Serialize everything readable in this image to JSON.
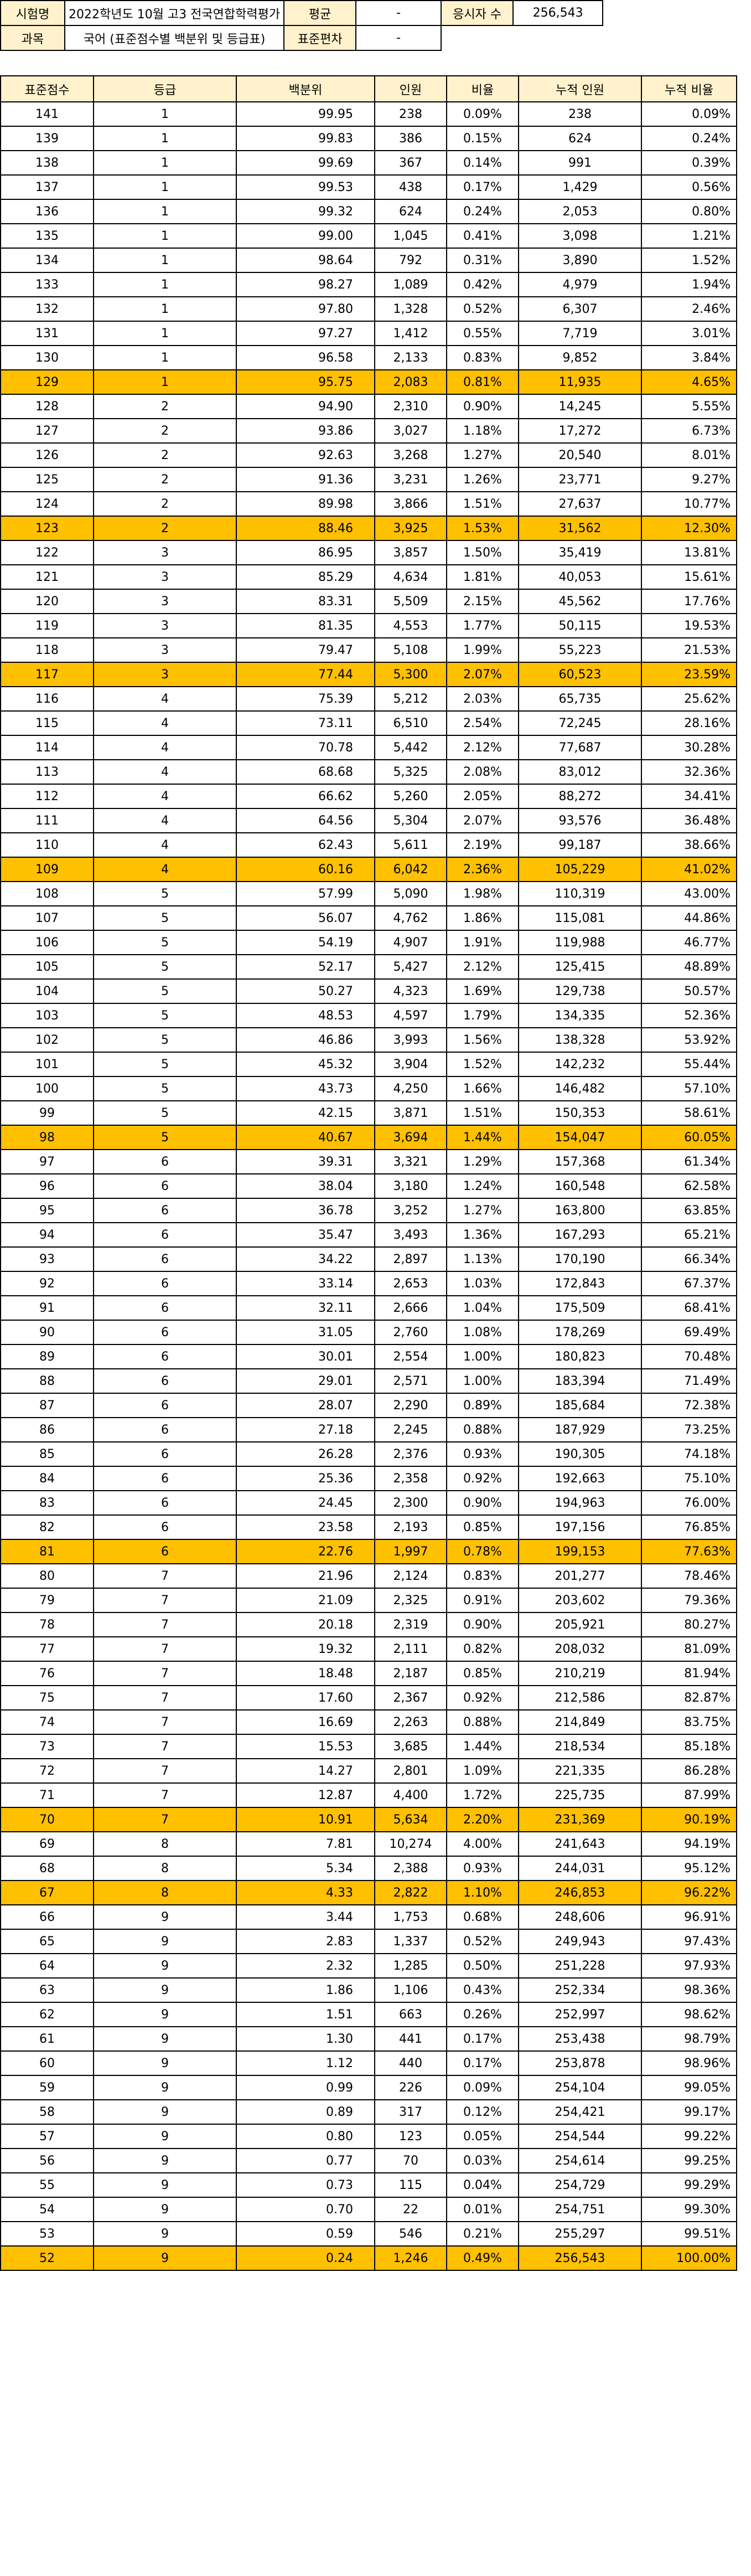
{
  "header": {
    "exam_label": "시험명",
    "exam_value": "2022학년도 10월 고3 전국연합학력평가",
    "mean_label": "평균",
    "mean_value": "-",
    "takers_label": "응시자 수",
    "takers_value": "256,543",
    "subject_label": "과목",
    "subject_value": "국어 (표준점수별 백분위 및 등급표)",
    "sd_label": "표준편차",
    "sd_value": "-"
  },
  "columns": [
    "표준점수",
    "등급",
    "백분위",
    "인원",
    "비율",
    "누적 인원",
    "누적 비율"
  ],
  "highlight_color": "#FFC000",
  "rows": [
    {
      "score": "141",
      "grade": "1",
      "pct": "99.95",
      "count": "238",
      "ratio": "0.09%",
      "cum": "238",
      "cum_ratio": "0.09%",
      "hl": false
    },
    {
      "score": "139",
      "grade": "1",
      "pct": "99.83",
      "count": "386",
      "ratio": "0.15%",
      "cum": "624",
      "cum_ratio": "0.24%",
      "hl": false
    },
    {
      "score": "138",
      "grade": "1",
      "pct": "99.69",
      "count": "367",
      "ratio": "0.14%",
      "cum": "991",
      "cum_ratio": "0.39%",
      "hl": false
    },
    {
      "score": "137",
      "grade": "1",
      "pct": "99.53",
      "count": "438",
      "ratio": "0.17%",
      "cum": "1,429",
      "cum_ratio": "0.56%",
      "hl": false
    },
    {
      "score": "136",
      "grade": "1",
      "pct": "99.32",
      "count": "624",
      "ratio": "0.24%",
      "cum": "2,053",
      "cum_ratio": "0.80%",
      "hl": false
    },
    {
      "score": "135",
      "grade": "1",
      "pct": "99.00",
      "count": "1,045",
      "ratio": "0.41%",
      "cum": "3,098",
      "cum_ratio": "1.21%",
      "hl": false
    },
    {
      "score": "134",
      "grade": "1",
      "pct": "98.64",
      "count": "792",
      "ratio": "0.31%",
      "cum": "3,890",
      "cum_ratio": "1.52%",
      "hl": false
    },
    {
      "score": "133",
      "grade": "1",
      "pct": "98.27",
      "count": "1,089",
      "ratio": "0.42%",
      "cum": "4,979",
      "cum_ratio": "1.94%",
      "hl": false
    },
    {
      "score": "132",
      "grade": "1",
      "pct": "97.80",
      "count": "1,328",
      "ratio": "0.52%",
      "cum": "6,307",
      "cum_ratio": "2.46%",
      "hl": false
    },
    {
      "score": "131",
      "grade": "1",
      "pct": "97.27",
      "count": "1,412",
      "ratio": "0.55%",
      "cum": "7,719",
      "cum_ratio": "3.01%",
      "hl": false
    },
    {
      "score": "130",
      "grade": "1",
      "pct": "96.58",
      "count": "2,133",
      "ratio": "0.83%",
      "cum": "9,852",
      "cum_ratio": "3.84%",
      "hl": false
    },
    {
      "score": "129",
      "grade": "1",
      "pct": "95.75",
      "count": "2,083",
      "ratio": "0.81%",
      "cum": "11,935",
      "cum_ratio": "4.65%",
      "hl": true
    },
    {
      "score": "128",
      "grade": "2",
      "pct": "94.90",
      "count": "2,310",
      "ratio": "0.90%",
      "cum": "14,245",
      "cum_ratio": "5.55%",
      "hl": false
    },
    {
      "score": "127",
      "grade": "2",
      "pct": "93.86",
      "count": "3,027",
      "ratio": "1.18%",
      "cum": "17,272",
      "cum_ratio": "6.73%",
      "hl": false
    },
    {
      "score": "126",
      "grade": "2",
      "pct": "92.63",
      "count": "3,268",
      "ratio": "1.27%",
      "cum": "20,540",
      "cum_ratio": "8.01%",
      "hl": false
    },
    {
      "score": "125",
      "grade": "2",
      "pct": "91.36",
      "count": "3,231",
      "ratio": "1.26%",
      "cum": "23,771",
      "cum_ratio": "9.27%",
      "hl": false
    },
    {
      "score": "124",
      "grade": "2",
      "pct": "89.98",
      "count": "3,866",
      "ratio": "1.51%",
      "cum": "27,637",
      "cum_ratio": "10.77%",
      "hl": false
    },
    {
      "score": "123",
      "grade": "2",
      "pct": "88.46",
      "count": "3,925",
      "ratio": "1.53%",
      "cum": "31,562",
      "cum_ratio": "12.30%",
      "hl": true
    },
    {
      "score": "122",
      "grade": "3",
      "pct": "86.95",
      "count": "3,857",
      "ratio": "1.50%",
      "cum": "35,419",
      "cum_ratio": "13.81%",
      "hl": false
    },
    {
      "score": "121",
      "grade": "3",
      "pct": "85.29",
      "count": "4,634",
      "ratio": "1.81%",
      "cum": "40,053",
      "cum_ratio": "15.61%",
      "hl": false
    },
    {
      "score": "120",
      "grade": "3",
      "pct": "83.31",
      "count": "5,509",
      "ratio": "2.15%",
      "cum": "45,562",
      "cum_ratio": "17.76%",
      "hl": false
    },
    {
      "score": "119",
      "grade": "3",
      "pct": "81.35",
      "count": "4,553",
      "ratio": "1.77%",
      "cum": "50,115",
      "cum_ratio": "19.53%",
      "hl": false
    },
    {
      "score": "118",
      "grade": "3",
      "pct": "79.47",
      "count": "5,108",
      "ratio": "1.99%",
      "cum": "55,223",
      "cum_ratio": "21.53%",
      "hl": false
    },
    {
      "score": "117",
      "grade": "3",
      "pct": "77.44",
      "count": "5,300",
      "ratio": "2.07%",
      "cum": "60,523",
      "cum_ratio": "23.59%",
      "hl": true
    },
    {
      "score": "116",
      "grade": "4",
      "pct": "75.39",
      "count": "5,212",
      "ratio": "2.03%",
      "cum": "65,735",
      "cum_ratio": "25.62%",
      "hl": false
    },
    {
      "score": "115",
      "grade": "4",
      "pct": "73.11",
      "count": "6,510",
      "ratio": "2.54%",
      "cum": "72,245",
      "cum_ratio": "28.16%",
      "hl": false
    },
    {
      "score": "114",
      "grade": "4",
      "pct": "70.78",
      "count": "5,442",
      "ratio": "2.12%",
      "cum": "77,687",
      "cum_ratio": "30.28%",
      "hl": false
    },
    {
      "score": "113",
      "grade": "4",
      "pct": "68.68",
      "count": "5,325",
      "ratio": "2.08%",
      "cum": "83,012",
      "cum_ratio": "32.36%",
      "hl": false
    },
    {
      "score": "112",
      "grade": "4",
      "pct": "66.62",
      "count": "5,260",
      "ratio": "2.05%",
      "cum": "88,272",
      "cum_ratio": "34.41%",
      "hl": false
    },
    {
      "score": "111",
      "grade": "4",
      "pct": "64.56",
      "count": "5,304",
      "ratio": "2.07%",
      "cum": "93,576",
      "cum_ratio": "36.48%",
      "hl": false
    },
    {
      "score": "110",
      "grade": "4",
      "pct": "62.43",
      "count": "5,611",
      "ratio": "2.19%",
      "cum": "99,187",
      "cum_ratio": "38.66%",
      "hl": false
    },
    {
      "score": "109",
      "grade": "4",
      "pct": "60.16",
      "count": "6,042",
      "ratio": "2.36%",
      "cum": "105,229",
      "cum_ratio": "41.02%",
      "hl": true
    },
    {
      "score": "108",
      "grade": "5",
      "pct": "57.99",
      "count": "5,090",
      "ratio": "1.98%",
      "cum": "110,319",
      "cum_ratio": "43.00%",
      "hl": false
    },
    {
      "score": "107",
      "grade": "5",
      "pct": "56.07",
      "count": "4,762",
      "ratio": "1.86%",
      "cum": "115,081",
      "cum_ratio": "44.86%",
      "hl": false
    },
    {
      "score": "106",
      "grade": "5",
      "pct": "54.19",
      "count": "4,907",
      "ratio": "1.91%",
      "cum": "119,988",
      "cum_ratio": "46.77%",
      "hl": false
    },
    {
      "score": "105",
      "grade": "5",
      "pct": "52.17",
      "count": "5,427",
      "ratio": "2.12%",
      "cum": "125,415",
      "cum_ratio": "48.89%",
      "hl": false
    },
    {
      "score": "104",
      "grade": "5",
      "pct": "50.27",
      "count": "4,323",
      "ratio": "1.69%",
      "cum": "129,738",
      "cum_ratio": "50.57%",
      "hl": false
    },
    {
      "score": "103",
      "grade": "5",
      "pct": "48.53",
      "count": "4,597",
      "ratio": "1.79%",
      "cum": "134,335",
      "cum_ratio": "52.36%",
      "hl": false
    },
    {
      "score": "102",
      "grade": "5",
      "pct": "46.86",
      "count": "3,993",
      "ratio": "1.56%",
      "cum": "138,328",
      "cum_ratio": "53.92%",
      "hl": false
    },
    {
      "score": "101",
      "grade": "5",
      "pct": "45.32",
      "count": "3,904",
      "ratio": "1.52%",
      "cum": "142,232",
      "cum_ratio": "55.44%",
      "hl": false
    },
    {
      "score": "100",
      "grade": "5",
      "pct": "43.73",
      "count": "4,250",
      "ratio": "1.66%",
      "cum": "146,482",
      "cum_ratio": "57.10%",
      "hl": false
    },
    {
      "score": "99",
      "grade": "5",
      "pct": "42.15",
      "count": "3,871",
      "ratio": "1.51%",
      "cum": "150,353",
      "cum_ratio": "58.61%",
      "hl": false
    },
    {
      "score": "98",
      "grade": "5",
      "pct": "40.67",
      "count": "3,694",
      "ratio": "1.44%",
      "cum": "154,047",
      "cum_ratio": "60.05%",
      "hl": true
    },
    {
      "score": "97",
      "grade": "6",
      "pct": "39.31",
      "count": "3,321",
      "ratio": "1.29%",
      "cum": "157,368",
      "cum_ratio": "61.34%",
      "hl": false
    },
    {
      "score": "96",
      "grade": "6",
      "pct": "38.04",
      "count": "3,180",
      "ratio": "1.24%",
      "cum": "160,548",
      "cum_ratio": "62.58%",
      "hl": false
    },
    {
      "score": "95",
      "grade": "6",
      "pct": "36.78",
      "count": "3,252",
      "ratio": "1.27%",
      "cum": "163,800",
      "cum_ratio": "63.85%",
      "hl": false
    },
    {
      "score": "94",
      "grade": "6",
      "pct": "35.47",
      "count": "3,493",
      "ratio": "1.36%",
      "cum": "167,293",
      "cum_ratio": "65.21%",
      "hl": false
    },
    {
      "score": "93",
      "grade": "6",
      "pct": "34.22",
      "count": "2,897",
      "ratio": "1.13%",
      "cum": "170,190",
      "cum_ratio": "66.34%",
      "hl": false
    },
    {
      "score": "92",
      "grade": "6",
      "pct": "33.14",
      "count": "2,653",
      "ratio": "1.03%",
      "cum": "172,843",
      "cum_ratio": "67.37%",
      "hl": false
    },
    {
      "score": "91",
      "grade": "6",
      "pct": "32.11",
      "count": "2,666",
      "ratio": "1.04%",
      "cum": "175,509",
      "cum_ratio": "68.41%",
      "hl": false
    },
    {
      "score": "90",
      "grade": "6",
      "pct": "31.05",
      "count": "2,760",
      "ratio": "1.08%",
      "cum": "178,269",
      "cum_ratio": "69.49%",
      "hl": false
    },
    {
      "score": "89",
      "grade": "6",
      "pct": "30.01",
      "count": "2,554",
      "ratio": "1.00%",
      "cum": "180,823",
      "cum_ratio": "70.48%",
      "hl": false
    },
    {
      "score": "88",
      "grade": "6",
      "pct": "29.01",
      "count": "2,571",
      "ratio": "1.00%",
      "cum": "183,394",
      "cum_ratio": "71.49%",
      "hl": false
    },
    {
      "score": "87",
      "grade": "6",
      "pct": "28.07",
      "count": "2,290",
      "ratio": "0.89%",
      "cum": "185,684",
      "cum_ratio": "72.38%",
      "hl": false
    },
    {
      "score": "86",
      "grade": "6",
      "pct": "27.18",
      "count": "2,245",
      "ratio": "0.88%",
      "cum": "187,929",
      "cum_ratio": "73.25%",
      "hl": false
    },
    {
      "score": "85",
      "grade": "6",
      "pct": "26.28",
      "count": "2,376",
      "ratio": "0.93%",
      "cum": "190,305",
      "cum_ratio": "74.18%",
      "hl": false
    },
    {
      "score": "84",
      "grade": "6",
      "pct": "25.36",
      "count": "2,358",
      "ratio": "0.92%",
      "cum": "192,663",
      "cum_ratio": "75.10%",
      "hl": false
    },
    {
      "score": "83",
      "grade": "6",
      "pct": "24.45",
      "count": "2,300",
      "ratio": "0.90%",
      "cum": "194,963",
      "cum_ratio": "76.00%",
      "hl": false
    },
    {
      "score": "82",
      "grade": "6",
      "pct": "23.58",
      "count": "2,193",
      "ratio": "0.85%",
      "cum": "197,156",
      "cum_ratio": "76.85%",
      "hl": false
    },
    {
      "score": "81",
      "grade": "6",
      "pct": "22.76",
      "count": "1,997",
      "ratio": "0.78%",
      "cum": "199,153",
      "cum_ratio": "77.63%",
      "hl": true
    },
    {
      "score": "80",
      "grade": "7",
      "pct": "21.96",
      "count": "2,124",
      "ratio": "0.83%",
      "cum": "201,277",
      "cum_ratio": "78.46%",
      "hl": false
    },
    {
      "score": "79",
      "grade": "7",
      "pct": "21.09",
      "count": "2,325",
      "ratio": "0.91%",
      "cum": "203,602",
      "cum_ratio": "79.36%",
      "hl": false
    },
    {
      "score": "78",
      "grade": "7",
      "pct": "20.18",
      "count": "2,319",
      "ratio": "0.90%",
      "cum": "205,921",
      "cum_ratio": "80.27%",
      "hl": false
    },
    {
      "score": "77",
      "grade": "7",
      "pct": "19.32",
      "count": "2,111",
      "ratio": "0.82%",
      "cum": "208,032",
      "cum_ratio": "81.09%",
      "hl": false
    },
    {
      "score": "76",
      "grade": "7",
      "pct": "18.48",
      "count": "2,187",
      "ratio": "0.85%",
      "cum": "210,219",
      "cum_ratio": "81.94%",
      "hl": false
    },
    {
      "score": "75",
      "grade": "7",
      "pct": "17.60",
      "count": "2,367",
      "ratio": "0.92%",
      "cum": "212,586",
      "cum_ratio": "82.87%",
      "hl": false
    },
    {
      "score": "74",
      "grade": "7",
      "pct": "16.69",
      "count": "2,263",
      "ratio": "0.88%",
      "cum": "214,849",
      "cum_ratio": "83.75%",
      "hl": false
    },
    {
      "score": "73",
      "grade": "7",
      "pct": "15.53",
      "count": "3,685",
      "ratio": "1.44%",
      "cum": "218,534",
      "cum_ratio": "85.18%",
      "hl": false
    },
    {
      "score": "72",
      "grade": "7",
      "pct": "14.27",
      "count": "2,801",
      "ratio": "1.09%",
      "cum": "221,335",
      "cum_ratio": "86.28%",
      "hl": false
    },
    {
      "score": "71",
      "grade": "7",
      "pct": "12.87",
      "count": "4,400",
      "ratio": "1.72%",
      "cum": "225,735",
      "cum_ratio": "87.99%",
      "hl": false
    },
    {
      "score": "70",
      "grade": "7",
      "pct": "10.91",
      "count": "5,634",
      "ratio": "2.20%",
      "cum": "231,369",
      "cum_ratio": "90.19%",
      "hl": true
    },
    {
      "score": "69",
      "grade": "8",
      "pct": "7.81",
      "count": "10,274",
      "ratio": "4.00%",
      "cum": "241,643",
      "cum_ratio": "94.19%",
      "hl": false
    },
    {
      "score": "68",
      "grade": "8",
      "pct": "5.34",
      "count": "2,388",
      "ratio": "0.93%",
      "cum": "244,031",
      "cum_ratio": "95.12%",
      "hl": false
    },
    {
      "score": "67",
      "grade": "8",
      "pct": "4.33",
      "count": "2,822",
      "ratio": "1.10%",
      "cum": "246,853",
      "cum_ratio": "96.22%",
      "hl": true
    },
    {
      "score": "66",
      "grade": "9",
      "pct": "3.44",
      "count": "1,753",
      "ratio": "0.68%",
      "cum": "248,606",
      "cum_ratio": "96.91%",
      "hl": false
    },
    {
      "score": "65",
      "grade": "9",
      "pct": "2.83",
      "count": "1,337",
      "ratio": "0.52%",
      "cum": "249,943",
      "cum_ratio": "97.43%",
      "hl": false
    },
    {
      "score": "64",
      "grade": "9",
      "pct": "2.32",
      "count": "1,285",
      "ratio": "0.50%",
      "cum": "251,228",
      "cum_ratio": "97.93%",
      "hl": false
    },
    {
      "score": "63",
      "grade": "9",
      "pct": "1.86",
      "count": "1,106",
      "ratio": "0.43%",
      "cum": "252,334",
      "cum_ratio": "98.36%",
      "hl": false
    },
    {
      "score": "62",
      "grade": "9",
      "pct": "1.51",
      "count": "663",
      "ratio": "0.26%",
      "cum": "252,997",
      "cum_ratio": "98.62%",
      "hl": false
    },
    {
      "score": "61",
      "grade": "9",
      "pct": "1.30",
      "count": "441",
      "ratio": "0.17%",
      "cum": "253,438",
      "cum_ratio": "98.79%",
      "hl": false
    },
    {
      "score": "60",
      "grade": "9",
      "pct": "1.12",
      "count": "440",
      "ratio": "0.17%",
      "cum": "253,878",
      "cum_ratio": "98.96%",
      "hl": false
    },
    {
      "score": "59",
      "grade": "9",
      "pct": "0.99",
      "count": "226",
      "ratio": "0.09%",
      "cum": "254,104",
      "cum_ratio": "99.05%",
      "hl": false
    },
    {
      "score": "58",
      "grade": "9",
      "pct": "0.89",
      "count": "317",
      "ratio": "0.12%",
      "cum": "254,421",
      "cum_ratio": "99.17%",
      "hl": false
    },
    {
      "score": "57",
      "grade": "9",
      "pct": "0.80",
      "count": "123",
      "ratio": "0.05%",
      "cum": "254,544",
      "cum_ratio": "99.22%",
      "hl": false
    },
    {
      "score": "56",
      "grade": "9",
      "pct": "0.77",
      "count": "70",
      "ratio": "0.03%",
      "cum": "254,614",
      "cum_ratio": "99.25%",
      "hl": false
    },
    {
      "score": "55",
      "grade": "9",
      "pct": "0.73",
      "count": "115",
      "ratio": "0.04%",
      "cum": "254,729",
      "cum_ratio": "99.29%",
      "hl": false
    },
    {
      "score": "54",
      "grade": "9",
      "pct": "0.70",
      "count": "22",
      "ratio": "0.01%",
      "cum": "254,751",
      "cum_ratio": "99.30%",
      "hl": false
    },
    {
      "score": "53",
      "grade": "9",
      "pct": "0.59",
      "count": "546",
      "ratio": "0.21%",
      "cum": "255,297",
      "cum_ratio": "99.51%",
      "hl": false
    },
    {
      "score": "52",
      "grade": "9",
      "pct": "0.24",
      "count": "1,246",
      "ratio": "0.49%",
      "cum": "256,543",
      "cum_ratio": "100.00%",
      "hl": true
    }
  ]
}
